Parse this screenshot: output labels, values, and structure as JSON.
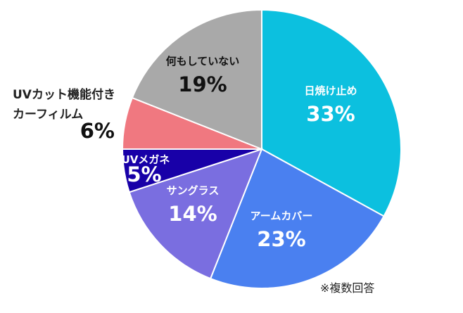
{
  "chart_data": {
    "type": "pie",
    "start": "12 o'clock",
    "direction": "clockwise",
    "slices": [
      {
        "name": "日焼け止め",
        "value": 33,
        "label": "33%",
        "color": "#0cc0df",
        "text_color": "#ffffff"
      },
      {
        "name": "アームカバー",
        "value": 23,
        "label": "23%",
        "color": "#4a80f0",
        "text_color": "#ffffff"
      },
      {
        "name": "サングラス",
        "value": 14,
        "label": "14%",
        "color": "#7a6ee0",
        "text_color": "#ffffff"
      },
      {
        "name": "UVメガネ",
        "value": 5,
        "label": "5%",
        "color": "#1800a8",
        "text_color": "#ffffff"
      },
      {
        "name": "UVカット機能付き カーフィルム",
        "name_lines": [
          "UVカット機能付き",
          "カーフィルム"
        ],
        "value": 6,
        "label": "6%",
        "color": "#f07880",
        "text_color": "#111111",
        "label_outside": true
      },
      {
        "name": "何もしていない",
        "value": 19,
        "label": "19%",
        "color": "#a9a9a9",
        "text_color": "#111111"
      }
    ],
    "note": "※複数回答"
  }
}
